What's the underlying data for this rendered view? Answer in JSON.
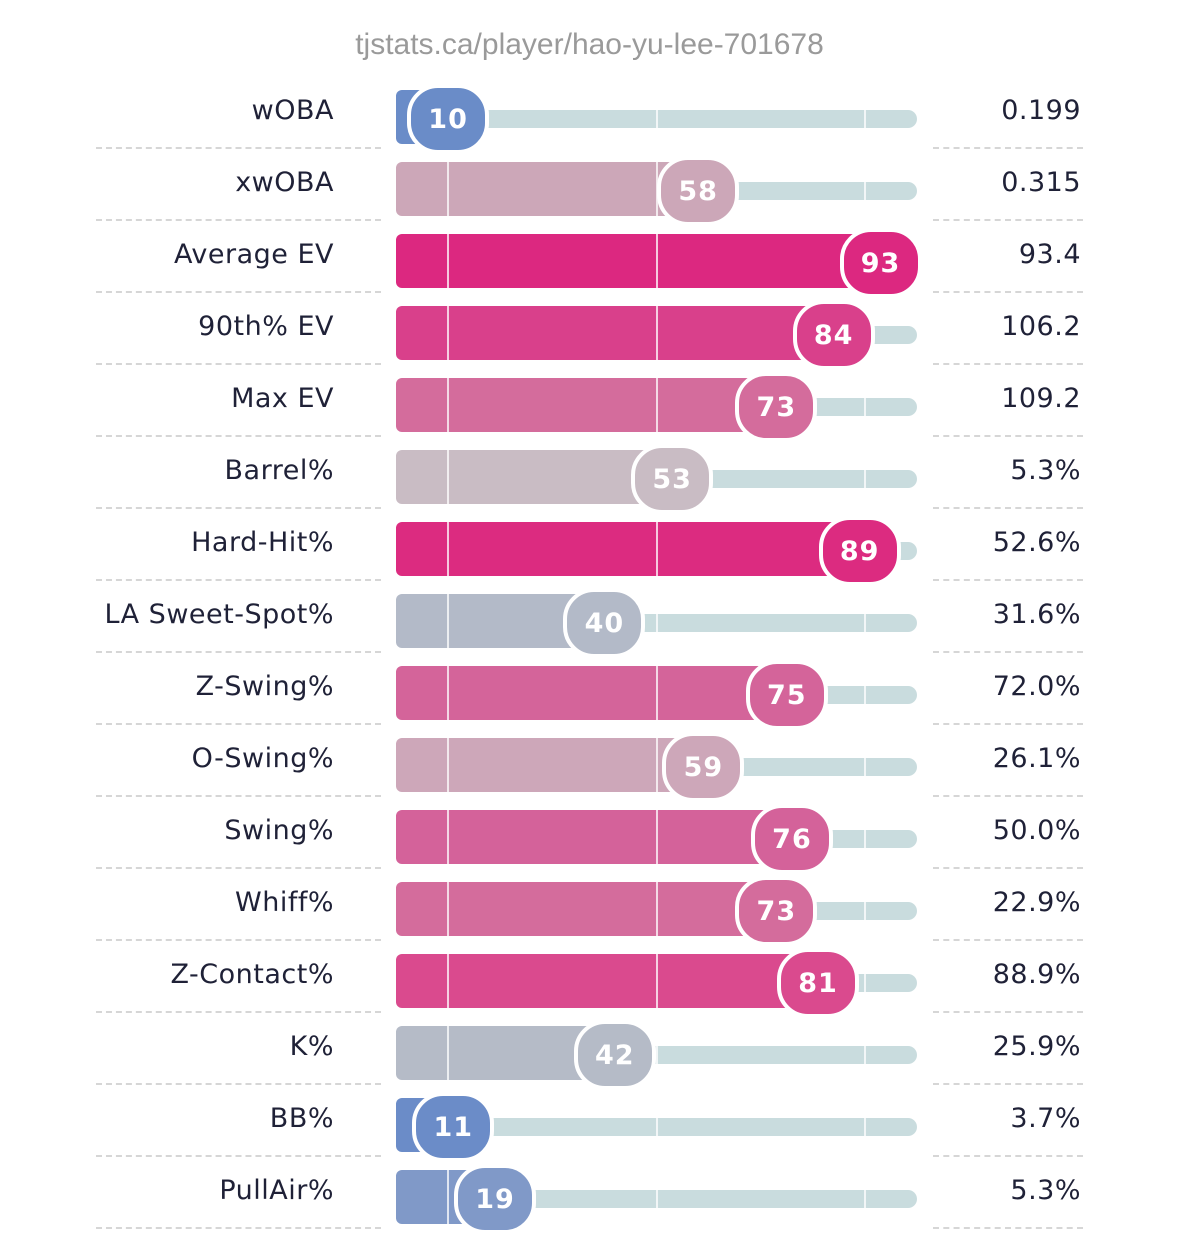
{
  "url": "tjstats.ca/player/hao-yu-lee-701678",
  "chart_data": {
    "type": "bar",
    "orientation": "horizontal",
    "xlim": [
      0,
      100
    ],
    "gridlines": [
      10,
      50,
      90
    ],
    "rows": [
      {
        "label": "wOBA",
        "percentile": 10,
        "value": "0.199",
        "color": "#6a8cc8"
      },
      {
        "label": "xwOBA",
        "percentile": 58,
        "value": "0.315",
        "color": "#cca7b8"
      },
      {
        "label": "Average EV",
        "percentile": 93,
        "value": "93.4",
        "color": "#dc2880"
      },
      {
        "label": "90th% EV",
        "percentile": 84,
        "value": "106.2",
        "color": "#d9408b"
      },
      {
        "label": "Max EV",
        "percentile": 73,
        "value": "109.2",
        "color": "#d46c9c"
      },
      {
        "label": "Barrel%",
        "percentile": 53,
        "value": "5.3%",
        "color": "#c9bcc4"
      },
      {
        "label": "Hard-Hit%",
        "percentile": 89,
        "value": "52.6%",
        "color": "#dc2b80"
      },
      {
        "label": "LA Sweet-Spot%",
        "percentile": 40,
        "value": "31.6%",
        "color": "#b3bac8"
      },
      {
        "label": "Z-Swing%",
        "percentile": 75,
        "value": "72.0%",
        "color": "#d4649a"
      },
      {
        "label": "O-Swing%",
        "percentile": 59,
        "value": "26.1%",
        "color": "#cda7b9"
      },
      {
        "label": "Swing%",
        "percentile": 76,
        "value": "50.0%",
        "color": "#d4629a"
      },
      {
        "label": "Whiff%",
        "percentile": 73,
        "value": "22.9%",
        "color": "#d46c9c"
      },
      {
        "label": "Z-Contact%",
        "percentile": 81,
        "value": "88.9%",
        "color": "#da4a8e"
      },
      {
        "label": "K%",
        "percentile": 42,
        "value": "25.9%",
        "color": "#b5bbc7"
      },
      {
        "label": "BB%",
        "percentile": 11,
        "value": "3.7%",
        "color": "#6b8cc8"
      },
      {
        "label": "PullAir%",
        "percentile": 19,
        "value": "5.3%",
        "color": "#8099c8"
      }
    ]
  }
}
